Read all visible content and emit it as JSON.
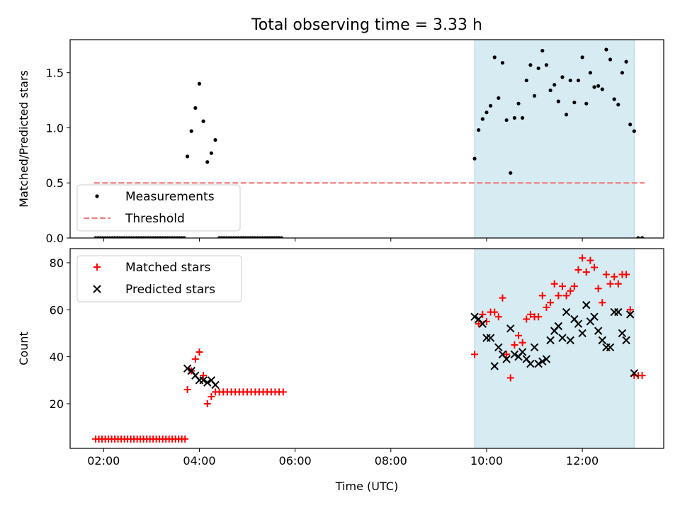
{
  "figure_title": "Total observing time = 3.33 h",
  "colors": {
    "measurements": "#000000",
    "threshold": "#f08080",
    "matched": "#ff0000",
    "predicted": "#000000",
    "span": "#add8e6"
  },
  "chart_data": [
    {
      "type": "scatter",
      "panel": "top",
      "title": "Total observing time = 3.33 h",
      "xlabel": "",
      "ylabel": "Matched/Predicted stars",
      "xlim": [
        "01:18",
        "13:42"
      ],
      "ylim": [
        0,
        1.8
      ],
      "yticks": [
        "0.0",
        "0.5",
        "1.0",
        "1.5"
      ],
      "xticks": [
        "02:00",
        "04:00",
        "06:00",
        "08:00",
        "10:00",
        "12:00"
      ],
      "shaded_span": [
        "09:45",
        "13:05"
      ],
      "legend_position": "lower left",
      "threshold": {
        "name": "Threshold",
        "y": 0.5,
        "x_range": [
          "01:48",
          "13:18"
        ]
      },
      "series": [
        {
          "name": "Measurements",
          "marker": "dot",
          "points": [
            [
              "01:50",
              0
            ],
            [
              "01:53",
              0
            ],
            [
              "01:56",
              0
            ],
            [
              "01:59",
              0
            ],
            [
              "02:02",
              0
            ],
            [
              "02:05",
              0
            ],
            [
              "02:08",
              0
            ],
            [
              "02:11",
              0
            ],
            [
              "02:14",
              0
            ],
            [
              "02:17",
              0
            ],
            [
              "02:20",
              0
            ],
            [
              "02:23",
              0
            ],
            [
              "02:26",
              0
            ],
            [
              "02:29",
              0
            ],
            [
              "02:32",
              0
            ],
            [
              "02:35",
              0
            ],
            [
              "02:38",
              0
            ],
            [
              "02:41",
              0
            ],
            [
              "02:44",
              0
            ],
            [
              "02:47",
              0
            ],
            [
              "02:50",
              0
            ],
            [
              "02:53",
              0
            ],
            [
              "02:56",
              0
            ],
            [
              "02:59",
              0
            ],
            [
              "03:02",
              0
            ],
            [
              "03:05",
              0
            ],
            [
              "03:08",
              0
            ],
            [
              "03:11",
              0
            ],
            [
              "03:14",
              0
            ],
            [
              "03:17",
              0
            ],
            [
              "03:20",
              0
            ],
            [
              "03:23",
              0
            ],
            [
              "03:26",
              0
            ],
            [
              "03:29",
              0
            ],
            [
              "03:32",
              0
            ],
            [
              "03:35",
              0
            ],
            [
              "03:38",
              0
            ],
            [
              "03:41",
              0
            ],
            [
              "03:45",
              0.74
            ],
            [
              "03:50",
              0.97
            ],
            [
              "03:55",
              1.18
            ],
            [
              "04:00",
              1.4
            ],
            [
              "04:05",
              1.06
            ],
            [
              "04:10",
              0.69
            ],
            [
              "04:15",
              0.77
            ],
            [
              "04:20",
              0.89
            ],
            [
              "04:25",
              0
            ],
            [
              "04:28",
              0
            ],
            [
              "04:31",
              0
            ],
            [
              "04:34",
              0
            ],
            [
              "04:37",
              0
            ],
            [
              "04:40",
              0
            ],
            [
              "04:43",
              0
            ],
            [
              "04:46",
              0
            ],
            [
              "04:49",
              0
            ],
            [
              "04:52",
              0
            ],
            [
              "04:55",
              0
            ],
            [
              "04:58",
              0
            ],
            [
              "05:01",
              0
            ],
            [
              "05:04",
              0
            ],
            [
              "05:07",
              0
            ],
            [
              "05:10",
              0
            ],
            [
              "05:13",
              0
            ],
            [
              "05:16",
              0
            ],
            [
              "05:19",
              0
            ],
            [
              "05:22",
              0
            ],
            [
              "05:25",
              0
            ],
            [
              "05:28",
              0
            ],
            [
              "05:31",
              0
            ],
            [
              "05:34",
              0
            ],
            [
              "05:37",
              0
            ],
            [
              "05:40",
              0
            ],
            [
              "05:43",
              0
            ],
            [
              "09:45",
              0.72
            ],
            [
              "09:50",
              0.98
            ],
            [
              "09:55",
              1.08
            ],
            [
              "10:00",
              1.14
            ],
            [
              "10:05",
              1.2
            ],
            [
              "10:10",
              1.64
            ],
            [
              "10:15",
              1.27
            ],
            [
              "10:20",
              1.59
            ],
            [
              "10:25",
              1.07
            ],
            [
              "10:30",
              0.59
            ],
            [
              "10:35",
              1.09
            ],
            [
              "10:40",
              1.22
            ],
            [
              "10:45",
              1.09
            ],
            [
              "10:50",
              1.43
            ],
            [
              "10:55",
              1.57
            ],
            [
              "11:00",
              1.29
            ],
            [
              "11:05",
              1.54
            ],
            [
              "11:10",
              1.7
            ],
            [
              "11:15",
              1.57
            ],
            [
              "11:20",
              1.34
            ],
            [
              "11:25",
              1.39
            ],
            [
              "11:30",
              1.24
            ],
            [
              "11:35",
              1.46
            ],
            [
              "11:40",
              1.12
            ],
            [
              "11:45",
              1.43
            ],
            [
              "11:50",
              1.23
            ],
            [
              "11:55",
              1.43
            ],
            [
              "12:00",
              1.64
            ],
            [
              "12:05",
              1.22
            ],
            [
              "12:10",
              1.5
            ],
            [
              "12:15",
              1.37
            ],
            [
              "12:20",
              1.38
            ],
            [
              "12:25",
              1.35
            ],
            [
              "12:30",
              1.71
            ],
            [
              "12:35",
              1.62
            ],
            [
              "12:40",
              1.26
            ],
            [
              "12:45",
              1.21
            ],
            [
              "12:50",
              1.5
            ],
            [
              "12:55",
              1.6
            ],
            [
              "13:00",
              1.03
            ],
            [
              "13:05",
              0.97
            ],
            [
              "13:10",
              0
            ],
            [
              "13:15",
              0
            ]
          ]
        }
      ]
    },
    {
      "type": "scatter",
      "panel": "bottom",
      "xlabel": "Time (UTC)",
      "ylabel": "Count",
      "xlim": [
        "01:18",
        "13:42"
      ],
      "ylim": [
        1,
        86
      ],
      "yticks": [
        "20",
        "40",
        "60",
        "80"
      ],
      "xticks": [
        "02:00",
        "04:00",
        "06:00",
        "08:00",
        "10:00",
        "12:00"
      ],
      "shaded_span": [
        "09:45",
        "13:05"
      ],
      "legend_position": "upper left",
      "series": [
        {
          "name": "Matched stars",
          "marker": "plus",
          "points": [
            [
              "01:50",
              5
            ],
            [
              "01:54",
              5
            ],
            [
              "01:58",
              5
            ],
            [
              "02:02",
              5
            ],
            [
              "02:06",
              5
            ],
            [
              "02:10",
              5
            ],
            [
              "02:14",
              5
            ],
            [
              "02:18",
              5
            ],
            [
              "02:22",
              5
            ],
            [
              "02:26",
              5
            ],
            [
              "02:30",
              5
            ],
            [
              "02:34",
              5
            ],
            [
              "02:38",
              5
            ],
            [
              "02:42",
              5
            ],
            [
              "02:46",
              5
            ],
            [
              "02:50",
              5
            ],
            [
              "02:54",
              5
            ],
            [
              "02:58",
              5
            ],
            [
              "03:02",
              5
            ],
            [
              "03:06",
              5
            ],
            [
              "03:10",
              5
            ],
            [
              "03:14",
              5
            ],
            [
              "03:18",
              5
            ],
            [
              "03:22",
              5
            ],
            [
              "03:26",
              5
            ],
            [
              "03:30",
              5
            ],
            [
              "03:34",
              5
            ],
            [
              "03:38",
              5
            ],
            [
              "03:42",
              5
            ],
            [
              "03:45",
              26
            ],
            [
              "03:50",
              34
            ],
            [
              "03:55",
              39
            ],
            [
              "04:00",
              42
            ],
            [
              "04:05",
              32
            ],
            [
              "04:10",
              20
            ],
            [
              "04:15",
              23
            ],
            [
              "04:20",
              25
            ],
            [
              "04:25",
              25
            ],
            [
              "04:30",
              25
            ],
            [
              "04:35",
              25
            ],
            [
              "04:40",
              25
            ],
            [
              "04:45",
              25
            ],
            [
              "04:50",
              25
            ],
            [
              "04:55",
              25
            ],
            [
              "05:00",
              25
            ],
            [
              "05:05",
              25
            ],
            [
              "05:10",
              25
            ],
            [
              "05:15",
              25
            ],
            [
              "05:20",
              25
            ],
            [
              "05:25",
              25
            ],
            [
              "05:30",
              25
            ],
            [
              "05:35",
              25
            ],
            [
              "05:40",
              25
            ],
            [
              "05:45",
              25
            ],
            [
              "09:45",
              41
            ],
            [
              "09:50",
              54
            ],
            [
              "09:55",
              58
            ],
            [
              "10:00",
              55
            ],
            [
              "10:05",
              59
            ],
            [
              "10:10",
              59
            ],
            [
              "10:15",
              57
            ],
            [
              "10:20",
              65
            ],
            [
              "10:25",
              41
            ],
            [
              "10:30",
              31
            ],
            [
              "10:35",
              45
            ],
            [
              "10:40",
              49
            ],
            [
              "10:45",
              46
            ],
            [
              "10:50",
              56
            ],
            [
              "10:55",
              58
            ],
            [
              "11:00",
              57
            ],
            [
              "11:05",
              57
            ],
            [
              "11:10",
              66
            ],
            [
              "11:15",
              61
            ],
            [
              "11:20",
              63
            ],
            [
              "11:25",
              71
            ],
            [
              "11:30",
              66
            ],
            [
              "11:35",
              70
            ],
            [
              "11:40",
              66
            ],
            [
              "11:45",
              68
            ],
            [
              "11:50",
              70
            ],
            [
              "11:55",
              77
            ],
            [
              "12:00",
              82
            ],
            [
              "12:05",
              76
            ],
            [
              "12:10",
              81
            ],
            [
              "12:15",
              78
            ],
            [
              "12:20",
              69
            ],
            [
              "12:25",
              63
            ],
            [
              "12:30",
              75
            ],
            [
              "12:35",
              71
            ],
            [
              "12:40",
              74
            ],
            [
              "12:45",
              71
            ],
            [
              "12:50",
              75
            ],
            [
              "12:55",
              75
            ],
            [
              "13:00",
              60
            ],
            [
              "13:05",
              32
            ],
            [
              "13:10",
              32
            ],
            [
              "13:15",
              32
            ]
          ]
        },
        {
          "name": "Predicted stars",
          "marker": "x",
          "points": [
            [
              "03:45",
              35
            ],
            [
              "03:50",
              34
            ],
            [
              "03:55",
              32
            ],
            [
              "04:00",
              30
            ],
            [
              "04:05",
              30
            ],
            [
              "04:10",
              29
            ],
            [
              "04:15",
              30
            ],
            [
              "04:20",
              28
            ],
            [
              "09:45",
              57
            ],
            [
              "09:50",
              56
            ],
            [
              "09:55",
              54
            ],
            [
              "10:00",
              48
            ],
            [
              "10:05",
              48
            ],
            [
              "10:10",
              36
            ],
            [
              "10:15",
              44
            ],
            [
              "10:20",
              41
            ],
            [
              "10:25",
              39
            ],
            [
              "10:30",
              52
            ],
            [
              "10:35",
              41
            ],
            [
              "10:40",
              40
            ],
            [
              "10:45",
              42
            ],
            [
              "10:50",
              39
            ],
            [
              "10:55",
              37
            ],
            [
              "11:00",
              44
            ],
            [
              "11:05",
              37
            ],
            [
              "11:10",
              38
            ],
            [
              "11:15",
              39
            ],
            [
              "11:20",
              47
            ],
            [
              "11:25",
              51
            ],
            [
              "11:30",
              53
            ],
            [
              "11:35",
              48
            ],
            [
              "11:40",
              59
            ],
            [
              "11:45",
              47
            ],
            [
              "11:50",
              56
            ],
            [
              "11:55",
              54
            ],
            [
              "12:00",
              50
            ],
            [
              "12:05",
              62
            ],
            [
              "12:10",
              55
            ],
            [
              "12:15",
              57
            ],
            [
              "12:20",
              51
            ],
            [
              "12:25",
              47
            ],
            [
              "12:30",
              44
            ],
            [
              "12:35",
              44
            ],
            [
              "12:40",
              59
            ],
            [
              "12:45",
              59
            ],
            [
              "12:50",
              50
            ],
            [
              "12:55",
              47
            ],
            [
              "13:00",
              58
            ],
            [
              "13:05",
              33
            ]
          ]
        }
      ]
    }
  ]
}
